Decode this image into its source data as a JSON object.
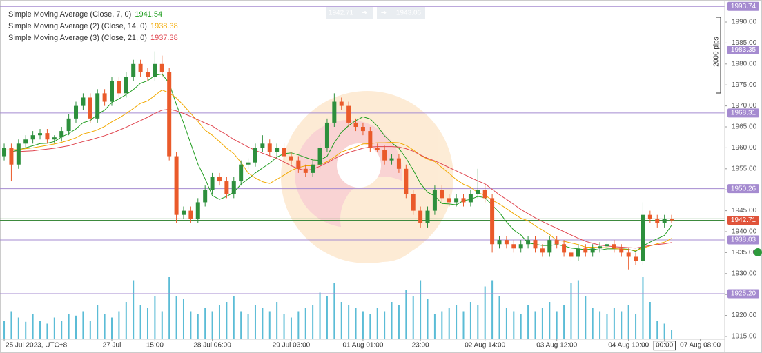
{
  "chart_data": {
    "type": "candlestick",
    "candles": {
      "open": [
        1958,
        1960,
        1956,
        1961,
        1962,
        1963,
        1963.5,
        1962,
        1962.5,
        1964,
        1967,
        1970,
        1972,
        1967,
        1973,
        1971,
        1976,
        1973,
        1977,
        1980,
        1978,
        1977,
        1980,
        1978,
        1958,
        1944,
        1945,
        1943,
        1947,
        1950,
        1953,
        1952,
        1949,
        1952,
        1956,
        1956.5,
        1960,
        1961,
        1959,
        1960,
        1958,
        1957,
        1955,
        1954,
        1956,
        1960,
        1966,
        1971,
        1970,
        1966,
        1965,
        1964,
        1960,
        1959.5,
        1957,
        1957.5,
        1955,
        1949,
        1945,
        1942,
        1945,
        1950,
        1948,
        1947,
        1948,
        1947,
        1949,
        1950,
        1948,
        1937,
        1938,
        1937,
        1936,
        1937,
        1938,
        1936,
        1935,
        1938,
        1937,
        1935,
        1934,
        1936,
        1935,
        1936,
        1936.5,
        1937,
        1936,
        1935,
        1934,
        1933,
        1944,
        1943,
        1942,
        1943
      ],
      "high": [
        1961,
        1961,
        1962,
        1963,
        1964,
        1964.5,
        1964.5,
        1963,
        1965,
        1968,
        1971,
        1973,
        1973,
        1974,
        1974,
        1977,
        1977,
        1978,
        1981,
        1981,
        1979,
        1983,
        1982,
        1979,
        1959,
        1946,
        1946,
        1948,
        1951,
        1954,
        1954,
        1953,
        1953,
        1957,
        1957.5,
        1961,
        1963,
        1962,
        1961,
        1961,
        1959,
        1958,
        1956,
        1957,
        1961,
        1967,
        1973,
        1972,
        1971,
        1967,
        1966,
        1965,
        1961,
        1960.5,
        1958.5,
        1958.5,
        1956,
        1950,
        1946,
        1946,
        1951,
        1951,
        1949,
        1949,
        1949,
        1950,
        1955,
        1951,
        1949,
        1939,
        1939,
        1938,
        1938,
        1939,
        1939,
        1937,
        1939,
        1939,
        1938,
        1936,
        1937,
        1937,
        1937,
        1937.5,
        1938,
        1938,
        1937,
        1936,
        1935,
        1947,
        1945,
        1944,
        1944,
        1944
      ],
      "low": [
        1957,
        1952,
        1955,
        1960,
        1961,
        1962,
        1961,
        1961,
        1961.5,
        1963,
        1966,
        1969,
        1966,
        1966,
        1970,
        1970,
        1972,
        1972,
        1976,
        1977,
        1976,
        1976,
        1977,
        1957,
        1942,
        1943,
        1942,
        1942,
        1946,
        1949,
        1951,
        1948,
        1948,
        1951,
        1955,
        1955.5,
        1959,
        1958,
        1958,
        1957,
        1956,
        1954,
        1953,
        1953,
        1955,
        1959,
        1965,
        1969,
        1965,
        1964,
        1963,
        1959,
        1959,
        1956,
        1956,
        1954,
        1948,
        1944,
        1941,
        1941,
        1944,
        1947,
        1946,
        1946,
        1946,
        1946,
        1948,
        1947,
        1935,
        1936,
        1936,
        1935,
        1935,
        1936,
        1935,
        1934,
        1934,
        1936,
        1934,
        1933,
        1933,
        1934,
        1934,
        1935,
        1935.5,
        1935,
        1934,
        1931,
        1932,
        1932,
        1942,
        1941,
        1941,
        1942
      ],
      "close": [
        1960,
        1956,
        1961,
        1962,
        1963,
        1963.5,
        1962,
        1962.5,
        1964,
        1967,
        1970,
        1972,
        1967,
        1973,
        1971,
        1976,
        1973,
        1977,
        1980,
        1978,
        1977,
        1980,
        1978,
        1958,
        1944,
        1945,
        1943,
        1947,
        1950,
        1953,
        1952,
        1949,
        1952,
        1956,
        1956.5,
        1960,
        1961,
        1959,
        1960,
        1958,
        1957,
        1955,
        1954,
        1956,
        1960,
        1966,
        1971,
        1970,
        1966,
        1965,
        1964,
        1960,
        1959.5,
        1957,
        1957.5,
        1955,
        1949,
        1945,
        1942,
        1945,
        1950,
        1948,
        1947,
        1948,
        1947,
        1949,
        1950,
        1948,
        1937,
        1938,
        1937,
        1936,
        1937,
        1938,
        1936,
        1935,
        1938,
        1937,
        1935,
        1934,
        1936,
        1935,
        1936,
        1936.5,
        1937,
        1936,
        1935,
        1934,
        1933,
        1944,
        1943,
        1942,
        1943,
        1942.71
      ]
    },
    "up_color": "#2d8f3c",
    "down_color": "#ea5a2a",
    "series": [
      {
        "name": "Simple Moving Average (Close, 7, 0)",
        "color": "#1f9d1f",
        "values": [
          1959,
          1959,
          1959.5,
          1960,
          1960.5,
          1961,
          1961.1,
          1961.5,
          1962.6,
          1963.4,
          1964.5,
          1966,
          1966.5,
          1968,
          1969,
          1970.8,
          1971.7,
          1972.7,
          1973.9,
          1975.4,
          1976,
          1977.3,
          1977.6,
          1975.4,
          1970.3,
          1965.9,
          1961,
          1956.1,
          1952.6,
          1948.6,
          1947.7,
          1948.4,
          1949.4,
          1951.3,
          1952.6,
          1954,
          1955.2,
          1956.3,
          1957.8,
          1958.6,
          1958.8,
          1958.3,
          1957.7,
          1957.1,
          1957,
          1958,
          1961.2,
          1963.7,
          1965.3,
          1966.5,
          1967.4,
          1966.9,
          1965.2,
          1962.9,
          1961.2,
          1959.9,
          1957.5,
          1954.7,
          1951.5,
          1949.4,
          1948.5,
          1946.7,
          1946.6,
          1946.4,
          1947.4,
          1947.7,
          1948.4,
          1948.1,
          1946.3,
          1944.6,
          1942.3,
          1940.4,
          1939.2,
          1937.3,
          1937,
          1936.7,
          1936.7,
          1936.9,
          1936.6,
          1936.1,
          1935.9,
          1935.7,
          1935.9,
          1935.6,
          1935.9,
          1935.9,
          1935.9,
          1935.8,
          1935.3,
          1936.6,
          1937.5,
          1938.3,
          1939.1,
          1941.54
        ]
      },
      {
        "name": "Simple Moving Average (2) (Close, 14, 0)",
        "color": "#f2a900",
        "values": [
          1959.5,
          1959.5,
          1959.6,
          1959.8,
          1960,
          1960.3,
          1960.6,
          1960.9,
          1961.3,
          1961.8,
          1962.4,
          1963.3,
          1963.7,
          1964.3,
          1965.1,
          1966.2,
          1967.1,
          1968.2,
          1969.4,
          1970.6,
          1971.2,
          1972.5,
          1973.8,
          1973.1,
          1971.9,
          1970.1,
          1968.2,
          1966.3,
          1964.2,
          1963,
          1961.5,
          1959.9,
          1958.6,
          1956.5,
          1954,
          1952.8,
          1951.9,
          1951.5,
          1952.5,
          1953.5,
          1954.6,
          1955.3,
          1955.7,
          1955.7,
          1956,
          1956.7,
          1957.8,
          1959,
          1959.6,
          1960.2,
          1960.9,
          1961,
          1961.2,
          1961.2,
          1961.3,
          1961.2,
          1960.6,
          1959.5,
          1958.2,
          1957.3,
          1956.7,
          1955.3,
          1953.9,
          1952.4,
          1951.3,
          1950.6,
          1949.3,
          1948.7,
          1947.5,
          1946.6,
          1945.5,
          1944.3,
          1943.2,
          1942.6,
          1941.4,
          1940.4,
          1939.3,
          1937.9,
          1937.7,
          1937.3,
          1936.9,
          1936.3,
          1936.3,
          1936.2,
          1936.2,
          1936,
          1935.8,
          1935.7,
          1935.5,
          1936.1,
          1936.6,
          1937.1,
          1937.5,
          1938.38
        ]
      },
      {
        "name": "Simple Moving Average (3) (Close, 21, 0)",
        "color": "#e0454f",
        "values": [
          1959,
          1959,
          1959.1,
          1959.2,
          1959.3,
          1959.5,
          1959.7,
          1959.9,
          1960.2,
          1960.5,
          1961,
          1961.5,
          1961.9,
          1962.4,
          1962.9,
          1963.5,
          1964.2,
          1964.9,
          1965.7,
          1966.5,
          1967.3,
          1968.2,
          1969,
          1969.2,
          1968.8,
          1968.2,
          1967.5,
          1966.7,
          1965.9,
          1965.2,
          1964.1,
          1963.1,
          1962,
          1961.1,
          1960.2,
          1959.4,
          1958.7,
          1958.1,
          1957.5,
          1956.6,
          1955.7,
          1955,
          1954.6,
          1954.9,
          1955.6,
          1956.4,
          1957.4,
          1958.2,
          1958.9,
          1959.4,
          1959.9,
          1960.2,
          1960.3,
          1960.3,
          1960.3,
          1960.2,
          1959.8,
          1959.2,
          1958.3,
          1957.5,
          1956.9,
          1956.1,
          1955.3,
          1954.5,
          1953.7,
          1952.9,
          1952.1,
          1951.4,
          1950.1,
          1948.8,
          1947.7,
          1946.5,
          1945.3,
          1944.3,
          1943.3,
          1942.4,
          1941.6,
          1940.8,
          1940,
          1939.2,
          1938.4,
          1937.7,
          1937.2,
          1936.8,
          1936.6,
          1936.4,
          1936.3,
          1936.2,
          1936.1,
          1936.4,
          1936.7,
          1936.9,
          1937.1,
          1937.38
        ]
      }
    ],
    "volume": {
      "color": "#5bbcd6",
      "values": [
        30,
        45,
        35,
        28,
        40,
        30,
        25,
        35,
        30,
        40,
        38,
        45,
        30,
        55,
        40,
        35,
        45,
        60,
        95,
        55,
        50,
        70,
        45,
        100,
        70,
        65,
        45,
        40,
        50,
        45,
        55,
        60,
        70,
        45,
        40,
        55,
        50,
        45,
        60,
        40,
        35,
        45,
        50,
        55,
        75,
        70,
        90,
        60,
        55,
        50,
        45,
        40,
        50,
        45,
        60,
        55,
        80,
        70,
        95,
        65,
        40,
        45,
        50,
        55,
        45,
        60,
        55,
        85,
        95,
        70,
        50,
        45,
        40,
        55,
        45,
        50,
        60,
        45,
        55,
        90,
        95,
        70,
        50,
        45,
        40,
        50,
        45,
        55,
        40,
        100,
        60,
        30,
        25,
        15
      ]
    },
    "xlim": [
      -0.58,
      100.4
    ],
    "xticks": [
      {
        "value": 0,
        "label": "25 Jul 2023, UTC+8"
      },
      {
        "value": 15,
        "label": "27 Jul"
      },
      {
        "value": 21,
        "label": "15:00"
      },
      {
        "value": 29,
        "label": "28 Jul 06:00"
      },
      {
        "value": 40,
        "label": "29 Jul 03:00"
      },
      {
        "value": 50,
        "label": "01 Aug 01:00"
      },
      {
        "value": 58,
        "label": "23:00"
      },
      {
        "value": 67,
        "label": "02 Aug 14:00"
      },
      {
        "value": 77,
        "label": "03 Aug 12:00"
      },
      {
        "value": 87,
        "label": "04 Aug 10:00"
      },
      {
        "value": 92,
        "label": "00:00"
      },
      {
        "value": 97,
        "label": "07 Aug 08:00"
      }
    ],
    "ylim": [
      1914.34,
      1993.95
    ],
    "yticks": [
      {
        "value": 1915,
        "label": "1915.00"
      },
      {
        "value": 1920,
        "label": "1920.00"
      },
      {
        "value": 1925,
        "label": "1925.00"
      },
      {
        "value": 1930,
        "label": "1930.00"
      },
      {
        "value": 1935,
        "label": "1935.00"
      },
      {
        "value": 1940,
        "label": "1940.00"
      },
      {
        "value": 1945,
        "label": "1945.00"
      },
      {
        "value": 1950,
        "label": "1950.00"
      },
      {
        "value": 1955,
        "label": "1955.00"
      },
      {
        "value": 1960,
        "label": "1960.00"
      },
      {
        "value": 1965,
        "label": "1965.00"
      },
      {
        "value": 1970,
        "label": "1970.00"
      },
      {
        "value": 1975,
        "label": "1975.00"
      },
      {
        "value": 1980,
        "label": "1980.00"
      },
      {
        "value": 1985,
        "label": "1985.00"
      },
      {
        "value": 1990,
        "label": "1990.00"
      }
    ],
    "levels": [
      1993.74,
      1983.35,
      1968.31,
      1950.26,
      1938.03,
      {
        "value": 1925.2,
        "label": "1925.20"
      }
    ],
    "level_color": "#a58bd0",
    "bid": 1942.71,
    "ask": 1943.06,
    "bid_line_color": "#3d8a3d",
    "bid_label_color": "#e0533a",
    "annotation": "2000 pips"
  }
}
